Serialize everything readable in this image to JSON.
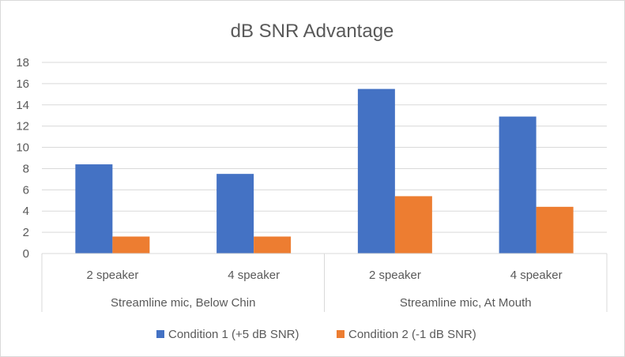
{
  "chart_data": {
    "type": "bar",
    "title": "dB SNR Advantage",
    "xlabel": "",
    "ylabel": "",
    "ylim": [
      0,
      18
    ],
    "yticks": [
      0,
      2,
      4,
      6,
      8,
      10,
      12,
      14,
      16,
      18
    ],
    "grid": true,
    "legend_position": "bottom",
    "categories": [
      "2 speaker",
      "4 speaker",
      "2 speaker",
      "4 speaker"
    ],
    "category_groups": [
      {
        "label": "Streamline mic, Below Chin",
        "span": 2
      },
      {
        "label": "Streamline mic, At Mouth",
        "span": 2
      }
    ],
    "series": [
      {
        "name": "Condition 1 (+5 dB SNR)",
        "color": "#4472c4",
        "values": [
          8.4,
          7.5,
          15.5,
          12.9
        ]
      },
      {
        "name": "Condition 2 (-1 dB SNR)",
        "color": "#ed7d31",
        "values": [
          1.6,
          1.6,
          5.4,
          4.4
        ]
      }
    ]
  }
}
